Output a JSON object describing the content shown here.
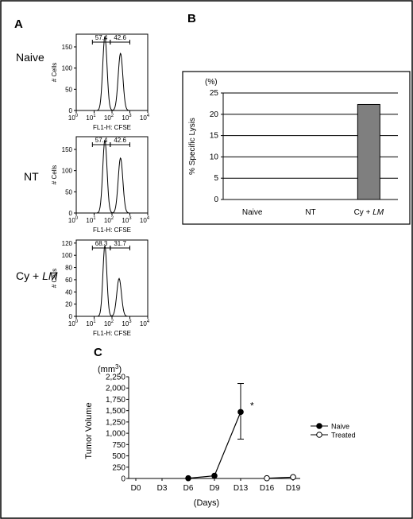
{
  "panels": {
    "A": "A",
    "B": "B",
    "C": "C"
  },
  "chart_data": [
    {
      "id": "flow-naive",
      "type": "line",
      "row_label": "Naive",
      "ylabel": "# Cells",
      "xlabel": "FL1-H: CFSE",
      "xscale": "log",
      "xlim": [
        1,
        10000
      ],
      "xticks": [
        "10",
        "10",
        "10",
        "10",
        "10"
      ],
      "xtick_exponents": [
        "0",
        "1",
        "2",
        "3",
        "4"
      ],
      "ylim": [
        0,
        180
      ],
      "yticks": [
        0,
        50,
        100,
        150
      ],
      "gates": [
        {
          "label": "57.4",
          "from": 8,
          "to": 80
        },
        {
          "label": "42.6",
          "from": 80,
          "to": 1000
        }
      ],
      "peaks": [
        {
          "x": 40,
          "y": 175,
          "w": 0.12
        },
        {
          "x": 300,
          "y": 135,
          "w": 0.13
        }
      ]
    },
    {
      "id": "flow-nt",
      "type": "line",
      "row_label": "NT",
      "ylabel": "# Cells",
      "xlabel": "FL1-H: CFSE",
      "xscale": "log",
      "xlim": [
        1,
        10000
      ],
      "xticks": [
        "10",
        "10",
        "10",
        "10",
        "10"
      ],
      "xtick_exponents": [
        "0",
        "1",
        "2",
        "3",
        "4"
      ],
      "ylim": [
        0,
        180
      ],
      "yticks": [
        0,
        50,
        100,
        150
      ],
      "gates": [
        {
          "label": "57.4",
          "from": 8,
          "to": 80
        },
        {
          "label": "42.6",
          "from": 80,
          "to": 1000
        }
      ],
      "peaks": [
        {
          "x": 40,
          "y": 172,
          "w": 0.12
        },
        {
          "x": 300,
          "y": 130,
          "w": 0.13
        }
      ]
    },
    {
      "id": "flow-cy-lm",
      "type": "line",
      "row_label_prefix": "Cy + ",
      "row_label_italic": "LM",
      "ylabel": "# Cells",
      "xlabel": "FL1-H: CFSE",
      "xscale": "log",
      "xlim": [
        1,
        10000
      ],
      "xticks": [
        "10",
        "10",
        "10",
        "10",
        "10"
      ],
      "xtick_exponents": [
        "0",
        "1",
        "2",
        "3",
        "4"
      ],
      "ylim": [
        0,
        125
      ],
      "yticks": [
        0,
        20,
        40,
        60,
        80,
        100,
        120
      ],
      "gates": [
        {
          "label": "68.3",
          "from": 8,
          "to": 80
        },
        {
          "label": "31.7",
          "from": 80,
          "to": 1000
        }
      ],
      "peaks": [
        {
          "x": 40,
          "y": 116,
          "w": 0.11
        },
        {
          "x": 250,
          "y": 62,
          "w": 0.13
        }
      ]
    },
    {
      "id": "lysis",
      "type": "bar",
      "unit": "(%)",
      "ylabel": "% Specific Lysis",
      "categories": [
        "Naive",
        "NT",
        "Cy + "
      ],
      "category_italic_suffix": [
        "",
        "",
        "LM"
      ],
      "values": [
        0,
        0,
        22.3
      ],
      "ylim": [
        0,
        25
      ],
      "yticks": [
        0,
        5,
        10,
        15,
        20,
        25
      ],
      "grid": true,
      "bar_color": "#7f7f7f"
    },
    {
      "id": "tumor",
      "type": "line",
      "unit_prefix": "(mm",
      "unit_exp": "3",
      "unit_suffix": ")",
      "ylabel": "Tumor Volume",
      "xlabel": "(Days)",
      "categories": [
        "D0",
        "D3",
        "D6",
        "D9",
        "D13",
        "D16",
        "D19"
      ],
      "ylim": [
        0,
        2250
      ],
      "yticks": [
        "0",
        "250",
        "500",
        "750",
        "1,000",
        "1,250",
        "1,500",
        "1,750",
        "2,000",
        "2,250"
      ],
      "series": [
        {
          "name": "Naive",
          "marker": "filled",
          "points": [
            [
              2,
              5
            ],
            [
              3,
              60
            ],
            [
              4,
              1470
            ]
          ],
          "err": [
            [
              4,
              870,
              2100
            ]
          ]
        },
        {
          "name": "Treated",
          "marker": "open",
          "points": [
            [
              5,
              5
            ],
            [
              6,
              30
            ]
          ]
        }
      ],
      "annotation": "*",
      "legend": "right"
    }
  ]
}
